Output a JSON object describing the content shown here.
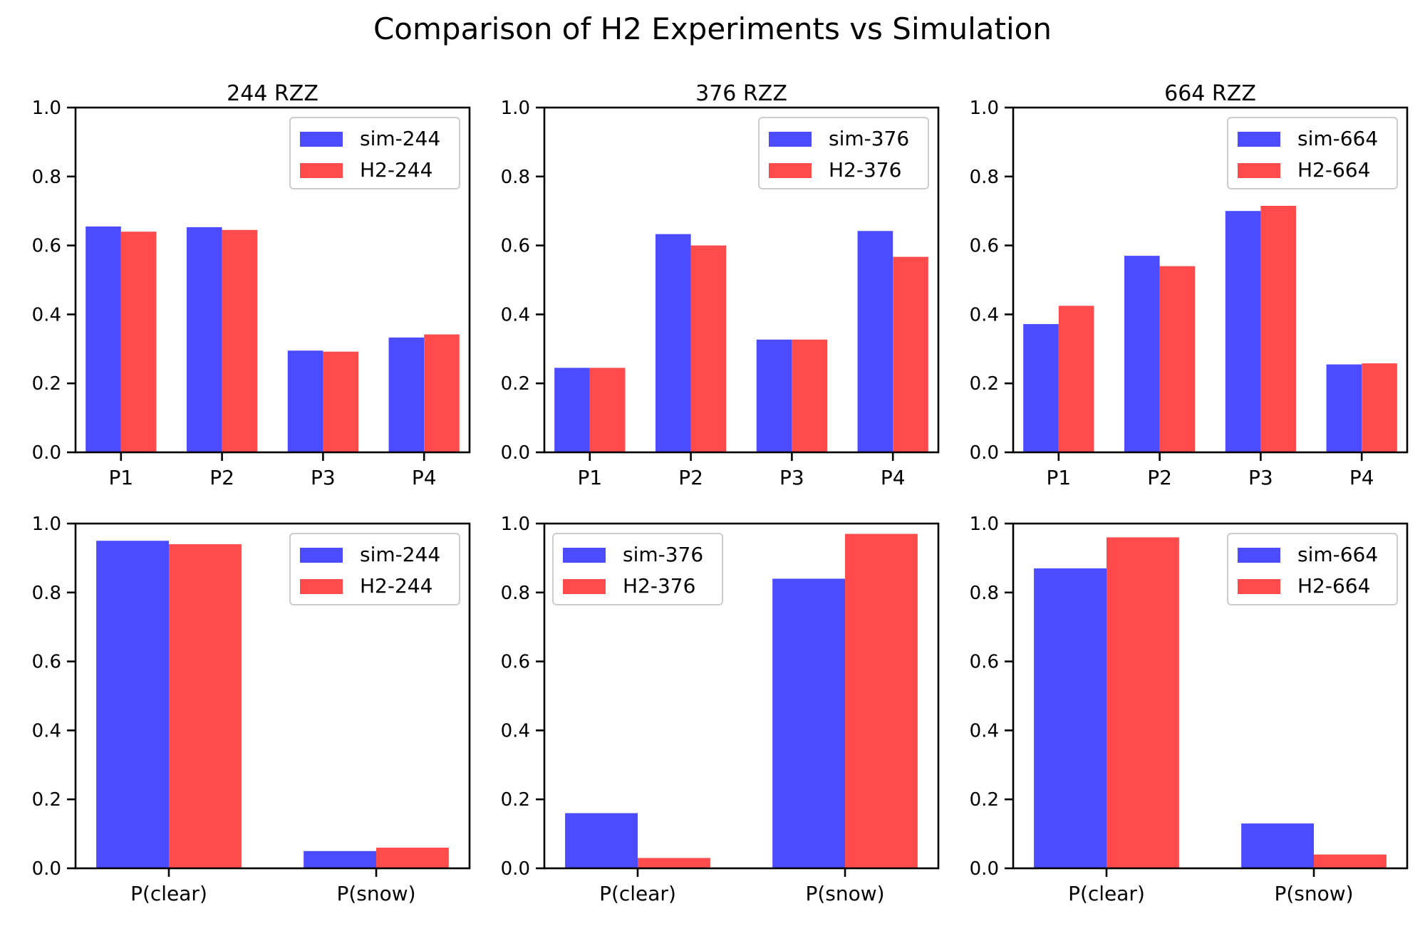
{
  "figure_title": "Comparison of H2 Experiments vs Simulation",
  "colors": {
    "sim": "#4b4bff",
    "h2": "#ff4b4b"
  },
  "chart_data": [
    {
      "type": "bar",
      "title": "244 RZZ",
      "categories": [
        "P1",
        "P2",
        "P3",
        "P4"
      ],
      "ylim": [
        0,
        1.0
      ],
      "yticks": [
        "0.0",
        "0.2",
        "0.4",
        "0.6",
        "0.8",
        "1.0"
      ],
      "legend_position": "top-right",
      "series": [
        {
          "name": "sim-244",
          "values": [
            0.655,
            0.653,
            0.295,
            0.333
          ]
        },
        {
          "name": "H2-244",
          "values": [
            0.64,
            0.645,
            0.292,
            0.342
          ]
        }
      ]
    },
    {
      "type": "bar",
      "title": "376 RZZ",
      "categories": [
        "P1",
        "P2",
        "P3",
        "P4"
      ],
      "ylim": [
        0,
        1.0
      ],
      "yticks": [
        "0.0",
        "0.2",
        "0.4",
        "0.6",
        "0.8",
        "1.0"
      ],
      "legend_position": "top-right",
      "series": [
        {
          "name": "sim-376",
          "values": [
            0.245,
            0.633,
            0.327,
            0.642
          ]
        },
        {
          "name": "H2-376",
          "values": [
            0.245,
            0.6,
            0.327,
            0.567
          ]
        }
      ]
    },
    {
      "type": "bar",
      "title": "664 RZZ",
      "categories": [
        "P1",
        "P2",
        "P3",
        "P4"
      ],
      "ylim": [
        0,
        1.0
      ],
      "yticks": [
        "0.0",
        "0.2",
        "0.4",
        "0.6",
        "0.8",
        "1.0"
      ],
      "legend_position": "top-right",
      "series": [
        {
          "name": "sim-664",
          "values": [
            0.372,
            0.57,
            0.7,
            0.255
          ]
        },
        {
          "name": "H2-664",
          "values": [
            0.425,
            0.54,
            0.715,
            0.258
          ]
        }
      ]
    },
    {
      "type": "bar",
      "title": "",
      "categories": [
        "P(clear)",
        "P(snow)"
      ],
      "ylim": [
        0,
        1.0
      ],
      "yticks": [
        "0.0",
        "0.2",
        "0.4",
        "0.6",
        "0.8",
        "1.0"
      ],
      "legend_position": "top-right",
      "series": [
        {
          "name": "sim-244",
          "values": [
            0.95,
            0.05
          ]
        },
        {
          "name": "H2-244",
          "values": [
            0.94,
            0.06
          ]
        }
      ]
    },
    {
      "type": "bar",
      "title": "",
      "categories": [
        "P(clear)",
        "P(snow)"
      ],
      "ylim": [
        0,
        1.0
      ],
      "yticks": [
        "0.0",
        "0.2",
        "0.4",
        "0.6",
        "0.8",
        "1.0"
      ],
      "legend_position": "top-left",
      "series": [
        {
          "name": "sim-376",
          "values": [
            0.16,
            0.84
          ]
        },
        {
          "name": "H2-376",
          "values": [
            0.03,
            0.97
          ]
        }
      ]
    },
    {
      "type": "bar",
      "title": "",
      "categories": [
        "P(clear)",
        "P(snow)"
      ],
      "ylim": [
        0,
        1.0
      ],
      "yticks": [
        "0.0",
        "0.2",
        "0.4",
        "0.6",
        "0.8",
        "1.0"
      ],
      "legend_position": "top-right",
      "series": [
        {
          "name": "sim-664",
          "values": [
            0.87,
            0.13
          ]
        },
        {
          "name": "H2-664",
          "values": [
            0.96,
            0.04
          ]
        }
      ]
    }
  ]
}
